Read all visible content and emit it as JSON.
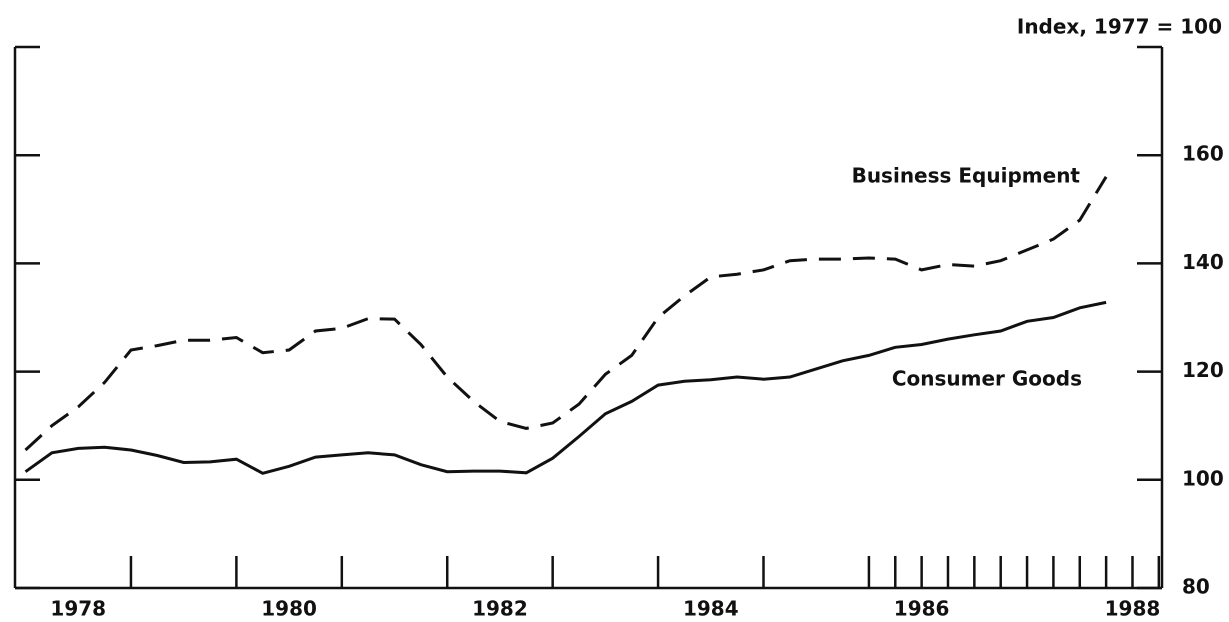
{
  "chart_data": {
    "type": "line",
    "y_axis_label": "Index, 1977 = 100",
    "x": [
      1978,
      1978.25,
      1978.5,
      1978.75,
      1979,
      1979.25,
      1979.5,
      1979.75,
      1980,
      1980.25,
      1980.5,
      1980.75,
      1981,
      1981.25,
      1981.5,
      1981.75,
      1982,
      1982.25,
      1982.5,
      1982.75,
      1983,
      1983.25,
      1983.5,
      1983.75,
      1984,
      1984.25,
      1984.5,
      1984.75,
      1985,
      1985.25,
      1985.5,
      1985.75,
      1986,
      1986.25,
      1986.5,
      1986.75,
      1987,
      1987.25,
      1987.5,
      1987.75,
      1988,
      1988.25
    ],
    "series": [
      {
        "name": "Business Equipment",
        "color": "#111111",
        "dash": "dashed",
        "values": [
          105.5,
          110,
          113.5,
          118,
          124,
          124.8,
          125.8,
          125.8,
          126.3,
          123.5,
          124,
          127.5,
          128,
          129.8,
          129.7,
          125,
          119,
          114.5,
          110.8,
          109.5,
          110.5,
          114,
          119.5,
          123,
          130,
          134,
          137.5,
          138,
          138.8,
          140.5,
          140.8,
          140.8,
          141,
          140.8,
          138.8,
          139.8,
          139.5,
          140.5,
          142.5,
          144.5,
          148,
          156
        ]
      },
      {
        "name": "Consumer Goods",
        "color": "#111111",
        "dash": "solid",
        "values": [
          101.5,
          105,
          105.8,
          106,
          105.5,
          104.5,
          103.2,
          103.3,
          103.8,
          101.2,
          102.5,
          104.2,
          104.6,
          105,
          104.6,
          102.8,
          101.5,
          101.6,
          101.6,
          101.3,
          104,
          108,
          112.2,
          114.5,
          117.5,
          118.2,
          118.5,
          119,
          118.6,
          119,
          120.5,
          122,
          123,
          124.5,
          125,
          126,
          126.8,
          127.5,
          129.3,
          130,
          131.8,
          132.8
        ]
      }
    ],
    "xlim": [
      1977.9,
      1988.78
    ],
    "xticks": [
      {
        "value": 1978.5,
        "label": "1978"
      },
      {
        "value": 1980.5,
        "label": "1980"
      },
      {
        "value": 1982.5,
        "label": "1982"
      },
      {
        "value": 1984.5,
        "label": "1984"
      },
      {
        "value": 1986.5,
        "label": "1986"
      },
      {
        "value": 1988.5,
        "label": "1988"
      }
    ],
    "xticks_minor": [
      1979,
      1980,
      1981,
      1982,
      1983,
      1984,
      1985,
      1986,
      1986.25,
      1986.5,
      1986.75,
      1987,
      1987.25,
      1987.5,
      1987.75,
      1988,
      1988.25,
      1988.5,
      1988.75
    ],
    "ylim": [
      80,
      180
    ],
    "yticks": [
      80,
      100,
      120,
      140,
      160
    ],
    "y_axis_side": "right"
  }
}
